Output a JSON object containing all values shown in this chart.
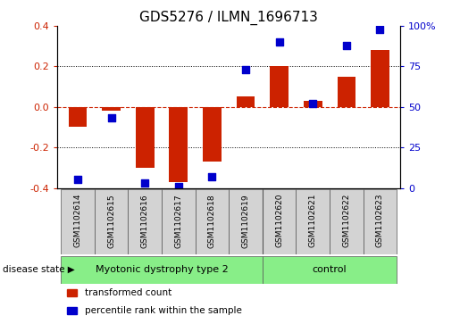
{
  "title": "GDS5276 / ILMN_1696713",
  "samples": [
    "GSM1102614",
    "GSM1102615",
    "GSM1102616",
    "GSM1102617",
    "GSM1102618",
    "GSM1102619",
    "GSM1102620",
    "GSM1102621",
    "GSM1102622",
    "GSM1102623"
  ],
  "transformed_count": [
    -0.1,
    -0.02,
    -0.3,
    -0.37,
    -0.27,
    0.05,
    0.2,
    0.03,
    0.15,
    0.28
  ],
  "percentile_rank": [
    5,
    43,
    3,
    1,
    7,
    73,
    90,
    52,
    88,
    98
  ],
  "ylim_left": [
    -0.4,
    0.4
  ],
  "ylim_right": [
    0,
    100
  ],
  "yticks_left": [
    -0.4,
    -0.2,
    0.0,
    0.2,
    0.4
  ],
  "yticks_right": [
    0,
    25,
    50,
    75,
    100
  ],
  "ytick_labels_right": [
    "0",
    "25",
    "50",
    "75",
    "100%"
  ],
  "bar_color": "#cc2200",
  "dot_color": "#0000cc",
  "hline_zero_color": "#cc2200",
  "hline_dotted_color": "#000000",
  "groups": [
    {
      "label": "Myotonic dystrophy type 2",
      "start": 0,
      "end": 6,
      "color": "#88ee88"
    },
    {
      "label": "control",
      "start": 6,
      "end": 10,
      "color": "#88ee88"
    }
  ],
  "group_label_text": "disease state",
  "legend_items": [
    {
      "color": "#cc2200",
      "label": "transformed count"
    },
    {
      "color": "#0000cc",
      "label": "percentile rank within the sample"
    }
  ],
  "bar_width": 0.55,
  "dot_size": 28,
  "title_fontsize": 11,
  "tick_fontsize": 8,
  "sample_fontsize": 6.5,
  "group_fontsize": 8,
  "legend_fontsize": 7.5,
  "group_box_color": "#d3d3d3"
}
